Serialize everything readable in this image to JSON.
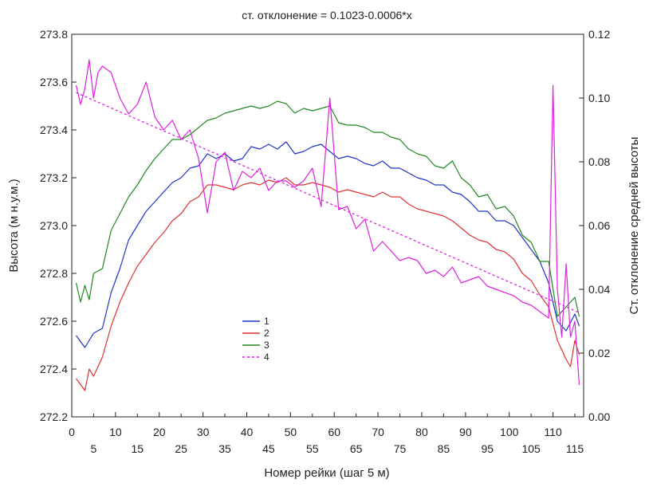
{
  "chart_data": {
    "type": "line",
    "title": "ст. отклонение = 0.1023-0.0006*x",
    "xlabel": "Номер рейки (шаг 5 м)",
    "ylabel": "Высота (м н.у.м.)",
    "y2label": "Ст. отклонение средней высоты",
    "xlim": [
      0,
      117
    ],
    "ylim": [
      272.2,
      273.8
    ],
    "y2lim": [
      0.0,
      0.12
    ],
    "x_ticks_top": [
      "0",
      "10",
      "20",
      "30",
      "40",
      "50",
      "60",
      "70",
      "80",
      "90",
      "100",
      "110"
    ],
    "x_ticks_bottom": [
      "5",
      "15",
      "25",
      "35",
      "45",
      "55",
      "65",
      "75",
      "85",
      "95",
      "105",
      "115"
    ],
    "y_ticks": [
      "272.2",
      "272.4",
      "272.6",
      "272.8",
      "273.0",
      "273.2",
      "273.4",
      "273.6",
      "273.8"
    ],
    "y2_ticks": [
      "0.00",
      "0.02",
      "0.04",
      "0.06",
      "0.08",
      "0.10",
      "0.12"
    ],
    "legend_position": "center-left",
    "legend": [
      {
        "label": "1",
        "color": "#2233cc"
      },
      {
        "label": "2",
        "color": "#dd3333"
      },
      {
        "label": "3",
        "color": "#228822"
      },
      {
        "label": "4",
        "color": "#e020e0"
      }
    ],
    "trend": {
      "intercept": 0.1023,
      "slope": -0.0006,
      "color": "#e020e0",
      "axis": "right"
    },
    "series": [
      {
        "name": "1",
        "axis": "left",
        "color": "#2233cc",
        "points": [
          [
            1,
            272.54
          ],
          [
            3,
            272.49
          ],
          [
            5,
            272.55
          ],
          [
            7,
            272.57
          ],
          [
            9,
            272.72
          ],
          [
            11,
            272.82
          ],
          [
            13,
            272.94
          ],
          [
            15,
            273.0
          ],
          [
            17,
            273.06
          ],
          [
            19,
            273.1
          ],
          [
            21,
            273.14
          ],
          [
            23,
            273.18
          ],
          [
            25,
            273.2
          ],
          [
            27,
            273.24
          ],
          [
            29,
            273.25
          ],
          [
            31,
            273.3
          ],
          [
            33,
            273.28
          ],
          [
            35,
            273.3
          ],
          [
            37,
            273.27
          ],
          [
            39,
            273.28
          ],
          [
            41,
            273.33
          ],
          [
            43,
            273.32
          ],
          [
            45,
            273.34
          ],
          [
            47,
            273.32
          ],
          [
            49,
            273.35
          ],
          [
            51,
            273.3
          ],
          [
            53,
            273.31
          ],
          [
            55,
            273.33
          ],
          [
            57,
            273.34
          ],
          [
            59,
            273.31
          ],
          [
            61,
            273.28
          ],
          [
            63,
            273.29
          ],
          [
            65,
            273.28
          ],
          [
            67,
            273.26
          ],
          [
            69,
            273.25
          ],
          [
            71,
            273.27
          ],
          [
            73,
            273.24
          ],
          [
            75,
            273.24
          ],
          [
            77,
            273.22
          ],
          [
            79,
            273.2
          ],
          [
            81,
            273.19
          ],
          [
            83,
            273.17
          ],
          [
            85,
            273.17
          ],
          [
            87,
            273.14
          ],
          [
            89,
            273.13
          ],
          [
            91,
            273.1
          ],
          [
            93,
            273.06
          ],
          [
            95,
            273.06
          ],
          [
            97,
            273.02
          ],
          [
            99,
            273.02
          ],
          [
            101,
            273.0
          ],
          [
            103,
            272.95
          ],
          [
            105,
            272.9
          ],
          [
            107,
            272.85
          ],
          [
            109,
            272.76
          ],
          [
            111,
            272.6
          ],
          [
            113,
            272.56
          ],
          [
            115,
            272.63
          ],
          [
            116,
            272.58
          ]
        ]
      },
      {
        "name": "2",
        "axis": "left",
        "color": "#dd3333",
        "points": [
          [
            1,
            272.36
          ],
          [
            3,
            272.31
          ],
          [
            4,
            272.4
          ],
          [
            5,
            272.37
          ],
          [
            7,
            272.45
          ],
          [
            9,
            272.58
          ],
          [
            11,
            272.68
          ],
          [
            13,
            272.76
          ],
          [
            15,
            272.83
          ],
          [
            17,
            272.88
          ],
          [
            19,
            272.93
          ],
          [
            21,
            272.97
          ],
          [
            23,
            273.02
          ],
          [
            25,
            273.05
          ],
          [
            27,
            273.1
          ],
          [
            29,
            273.12
          ],
          [
            31,
            273.17
          ],
          [
            33,
            273.17
          ],
          [
            35,
            273.16
          ],
          [
            37,
            273.15
          ],
          [
            39,
            273.17
          ],
          [
            41,
            273.18
          ],
          [
            43,
            273.17
          ],
          [
            45,
            273.19
          ],
          [
            47,
            273.18
          ],
          [
            49,
            273.2
          ],
          [
            51,
            273.17
          ],
          [
            53,
            273.17
          ],
          [
            55,
            273.18
          ],
          [
            57,
            273.17
          ],
          [
            59,
            273.16
          ],
          [
            61,
            273.14
          ],
          [
            63,
            273.15
          ],
          [
            65,
            273.14
          ],
          [
            67,
            273.13
          ],
          [
            69,
            273.12
          ],
          [
            71,
            273.14
          ],
          [
            73,
            273.12
          ],
          [
            75,
            273.12
          ],
          [
            77,
            273.09
          ],
          [
            79,
            273.07
          ],
          [
            81,
            273.06
          ],
          [
            83,
            273.05
          ],
          [
            85,
            273.04
          ],
          [
            87,
            273.02
          ],
          [
            89,
            272.99
          ],
          [
            91,
            272.96
          ],
          [
            93,
            272.94
          ],
          [
            95,
            272.93
          ],
          [
            97,
            272.9
          ],
          [
            99,
            272.89
          ],
          [
            101,
            272.86
          ],
          [
            103,
            272.8
          ],
          [
            105,
            272.77
          ],
          [
            107,
            272.71
          ],
          [
            109,
            272.66
          ],
          [
            111,
            272.52
          ],
          [
            113,
            272.44
          ],
          [
            114,
            272.41
          ],
          [
            115,
            272.52
          ],
          [
            116,
            272.46
          ]
        ]
      },
      {
        "name": "3",
        "axis": "left",
        "color": "#228822",
        "points": [
          [
            1,
            272.76
          ],
          [
            2,
            272.68
          ],
          [
            3,
            272.75
          ],
          [
            4,
            272.69
          ],
          [
            5,
            272.8
          ],
          [
            7,
            272.82
          ],
          [
            9,
            272.98
          ],
          [
            11,
            273.05
          ],
          [
            13,
            273.12
          ],
          [
            15,
            273.17
          ],
          [
            17,
            273.23
          ],
          [
            19,
            273.28
          ],
          [
            21,
            273.32
          ],
          [
            23,
            273.36
          ],
          [
            25,
            273.36
          ],
          [
            27,
            273.38
          ],
          [
            29,
            273.41
          ],
          [
            31,
            273.44
          ],
          [
            33,
            273.45
          ],
          [
            35,
            273.47
          ],
          [
            37,
            273.48
          ],
          [
            39,
            273.49
          ],
          [
            41,
            273.5
          ],
          [
            43,
            273.49
          ],
          [
            45,
            273.5
          ],
          [
            47,
            273.52
          ],
          [
            49,
            273.51
          ],
          [
            51,
            273.47
          ],
          [
            53,
            273.49
          ],
          [
            55,
            273.48
          ],
          [
            57,
            273.49
          ],
          [
            59,
            273.5
          ],
          [
            61,
            273.43
          ],
          [
            63,
            273.42
          ],
          [
            65,
            273.42
          ],
          [
            67,
            273.41
          ],
          [
            69,
            273.39
          ],
          [
            71,
            273.39
          ],
          [
            73,
            273.37
          ],
          [
            75,
            273.36
          ],
          [
            77,
            273.32
          ],
          [
            79,
            273.3
          ],
          [
            81,
            273.29
          ],
          [
            83,
            273.25
          ],
          [
            85,
            273.24
          ],
          [
            87,
            273.27
          ],
          [
            89,
            273.2
          ],
          [
            91,
            273.17
          ],
          [
            93,
            273.12
          ],
          [
            95,
            273.13
          ],
          [
            97,
            273.07
          ],
          [
            99,
            273.08
          ],
          [
            101,
            273.04
          ],
          [
            103,
            272.96
          ],
          [
            105,
            272.93
          ],
          [
            107,
            272.85
          ],
          [
            109,
            272.85
          ],
          [
            111,
            272.62
          ],
          [
            113,
            272.66
          ],
          [
            115,
            272.7
          ],
          [
            116,
            272.62
          ]
        ]
      },
      {
        "name": "4",
        "axis": "right",
        "color": "#e020e0",
        "points": [
          [
            1,
            0.104
          ],
          [
            2,
            0.098
          ],
          [
            3,
            0.103
          ],
          [
            4,
            0.112
          ],
          [
            5,
            0.1
          ],
          [
            6,
            0.108
          ],
          [
            7,
            0.11
          ],
          [
            9,
            0.108
          ],
          [
            11,
            0.1
          ],
          [
            13,
            0.095
          ],
          [
            15,
            0.098
          ],
          [
            17,
            0.105
          ],
          [
            19,
            0.094
          ],
          [
            21,
            0.09
          ],
          [
            23,
            0.093
          ],
          [
            25,
            0.087
          ],
          [
            27,
            0.09
          ],
          [
            29,
            0.081
          ],
          [
            31,
            0.064
          ],
          [
            33,
            0.08
          ],
          [
            35,
            0.083
          ],
          [
            37,
            0.071
          ],
          [
            39,
            0.077
          ],
          [
            41,
            0.075
          ],
          [
            43,
            0.078
          ],
          [
            45,
            0.071
          ],
          [
            47,
            0.074
          ],
          [
            49,
            0.074
          ],
          [
            51,
            0.072
          ],
          [
            53,
            0.074
          ],
          [
            55,
            0.078
          ],
          [
            57,
            0.066
          ],
          [
            59,
            0.1
          ],
          [
            61,
            0.065
          ],
          [
            63,
            0.066
          ],
          [
            65,
            0.059
          ],
          [
            67,
            0.062
          ],
          [
            69,
            0.052
          ],
          [
            71,
            0.055
          ],
          [
            73,
            0.052
          ],
          [
            75,
            0.049
          ],
          [
            77,
            0.05
          ],
          [
            79,
            0.049
          ],
          [
            81,
            0.045
          ],
          [
            83,
            0.046
          ],
          [
            85,
            0.044
          ],
          [
            87,
            0.047
          ],
          [
            89,
            0.042
          ],
          [
            91,
            0.043
          ],
          [
            93,
            0.044
          ],
          [
            95,
            0.041
          ],
          [
            97,
            0.04
          ],
          [
            99,
            0.039
          ],
          [
            101,
            0.038
          ],
          [
            103,
            0.036
          ],
          [
            105,
            0.035
          ],
          [
            107,
            0.033
          ],
          [
            109,
            0.031
          ],
          [
            110,
            0.104
          ],
          [
            111,
            0.04
          ],
          [
            112,
            0.025
          ],
          [
            113,
            0.048
          ],
          [
            114,
            0.025
          ],
          [
            115,
            0.03
          ],
          [
            116,
            0.01
          ]
        ]
      }
    ]
  }
}
